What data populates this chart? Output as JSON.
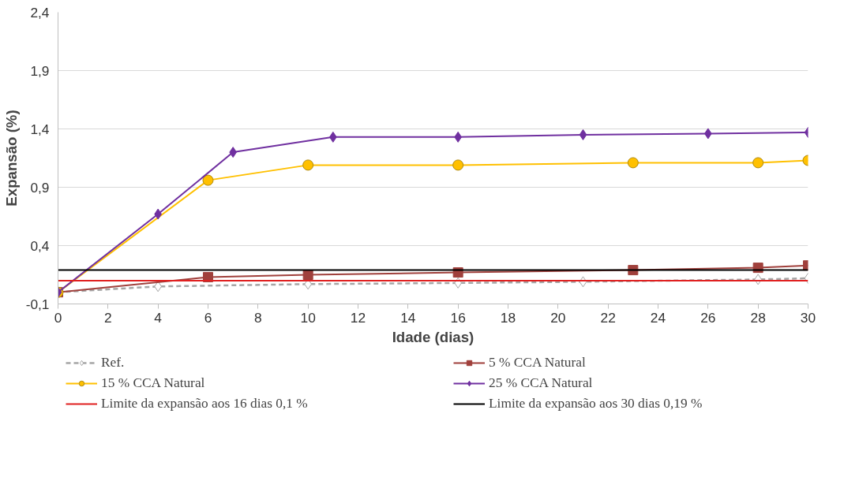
{
  "chart_data": {
    "type": "line",
    "xlabel": "Idade (dias)",
    "ylabel": "Expansão (%)",
    "xlim": [
      0,
      30
    ],
    "xticks": [
      0,
      2,
      4,
      6,
      8,
      10,
      12,
      14,
      16,
      18,
      20,
      22,
      24,
      26,
      28,
      30
    ],
    "ylim": [
      -0.1,
      2.4
    ],
    "yticks": [
      {
        "value": -0.1,
        "label": "-0,1"
      },
      {
        "value": 0.4,
        "label": "0,4"
      },
      {
        "value": 0.9,
        "label": "0,9"
      },
      {
        "value": 1.4,
        "label": "1,4"
      },
      {
        "value": 1.9,
        "label": "1,9"
      },
      {
        "value": 2.4,
        "label": "2,4"
      }
    ],
    "grid": "y",
    "legend": "bottom",
    "series": [
      {
        "name": "Ref.",
        "color": "#a6a6a6",
        "marker": "diamond",
        "line_style": "dashed",
        "x": [
          0,
          4,
          10,
          16,
          21,
          28,
          30
        ],
        "values": [
          0.0,
          0.05,
          0.07,
          0.08,
          0.09,
          0.11,
          0.12
        ]
      },
      {
        "name": "5 % CCA Natural",
        "color": "#a0403c",
        "marker": "square",
        "line_style": "solid",
        "x": [
          0,
          6,
          10,
          16,
          23,
          28,
          30
        ],
        "values": [
          0.0,
          0.13,
          0.15,
          0.17,
          0.19,
          0.21,
          0.23
        ]
      },
      {
        "name": "15 % CCA Natural",
        "color": "#ffc000",
        "marker": "circle",
        "line_style": "solid",
        "x": [
          0,
          6,
          10,
          16,
          23,
          28,
          30
        ],
        "values": [
          0.0,
          0.96,
          1.09,
          1.09,
          1.11,
          1.11,
          1.13
        ]
      },
      {
        "name": "25 % CCA Natural",
        "color": "#7030a0",
        "marker": "diamond",
        "line_style": "solid",
        "x": [
          0,
          4,
          7,
          11,
          16,
          21,
          26,
          30
        ],
        "values": [
          0.0,
          0.67,
          1.2,
          1.33,
          1.33,
          1.35,
          1.36,
          1.37
        ]
      },
      {
        "name": "Limite da expansão aos 16 dias 0,1 %",
        "color": "#e02020",
        "marker": "none",
        "line_style": "solid",
        "x": [
          0,
          30
        ],
        "values": [
          0.1,
          0.1
        ]
      },
      {
        "name": "Limite da expansão aos 30 dias 0,19 %",
        "color": "#000000",
        "marker": "none",
        "line_style": "solid",
        "x": [
          0,
          30
        ],
        "values": [
          0.19,
          0.19
        ]
      }
    ]
  }
}
